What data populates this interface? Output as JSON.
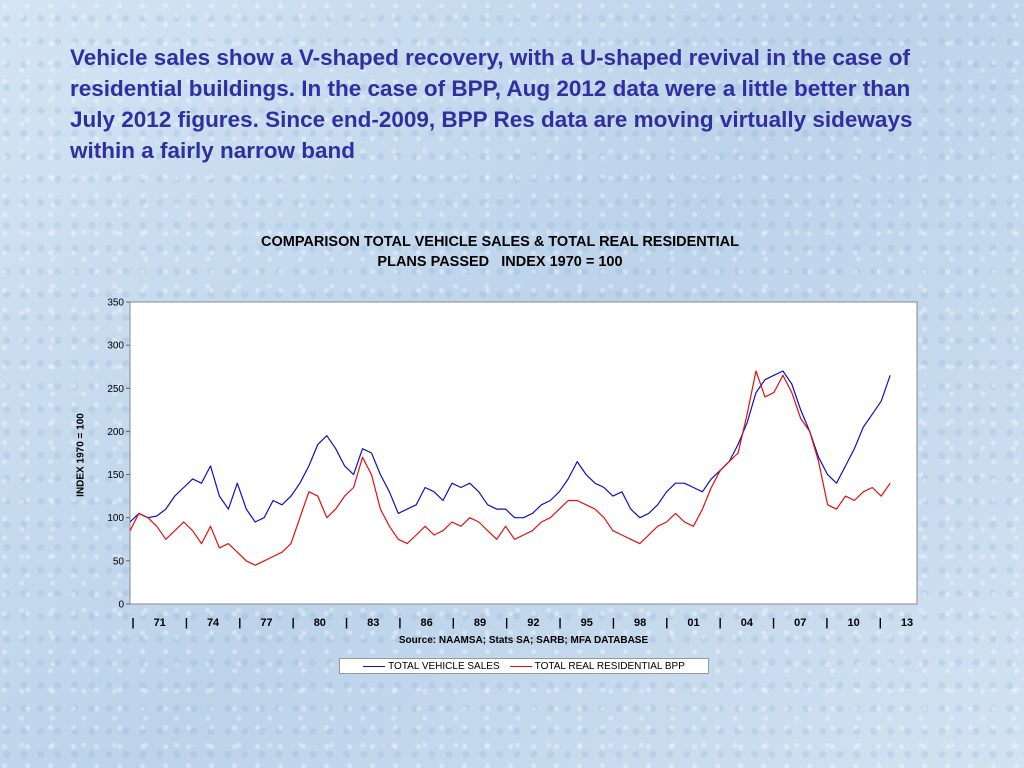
{
  "headline": "Vehicle sales show a V-shaped recovery, with a U-shaped revival in the case of residential buildings.  In the case of BPP, Aug 2012 data were a little better than July 2012 figures.  Since end-2009, BPP Res data are moving virtually sideways within a fairly narrow band",
  "chart_data": {
    "type": "line",
    "title_line1": "COMPARISON TOTAL VEHICLE SALES & TOTAL REAL RESIDENTIAL",
    "title_line2": "PLANS PASSED   INDEX 1970 = 100",
    "ylabel": "INDEX 1970 = 100",
    "xlabel": "Source: NAAMSA; Stats SA; SARB; MFA DATABASE",
    "ylim": [
      0,
      350
    ],
    "xlim": [
      1970,
      2014
    ],
    "yticks": [
      0,
      50,
      100,
      150,
      200,
      250,
      300,
      350
    ],
    "xtick_labels": [
      "|",
      "71",
      "|",
      "74",
      "|",
      "77",
      "|",
      "80",
      "|",
      "83",
      "|",
      "86",
      "|",
      "89",
      "|",
      "92",
      "|",
      "95",
      "|",
      "98",
      "|",
      "01",
      "|",
      "04",
      "|",
      "07",
      "|",
      "10",
      "|",
      "13"
    ],
    "grid": false,
    "legend_position": "bottom",
    "series": [
      {
        "name": "TOTAL VEHICLE SALES",
        "color": "#1010c0",
        "x": [
          1970,
          1970.5,
          1971,
          1971.5,
          1972,
          1972.5,
          1973,
          1973.5,
          1974,
          1974.5,
          1975,
          1975.5,
          1976,
          1976.5,
          1977,
          1977.5,
          1978,
          1978.5,
          1979,
          1979.5,
          1980,
          1980.5,
          1981,
          1981.5,
          1982,
          1982.5,
          1983,
          1983.5,
          1984,
          1984.5,
          1985,
          1985.5,
          1986,
          1986.5,
          1987,
          1987.5,
          1988,
          1988.5,
          1989,
          1989.5,
          1990,
          1990.5,
          1991,
          1991.5,
          1992,
          1992.5,
          1993,
          1993.5,
          1994,
          1994.5,
          1995,
          1995.5,
          1996,
          1996.5,
          1997,
          1997.5,
          1998,
          1998.5,
          1999,
          1999.5,
          2000,
          2000.5,
          2001,
          2001.5,
          2002,
          2002.5,
          2003,
          2003.5,
          2004,
          2004.5,
          2005,
          2005.5,
          2006,
          2006.5,
          2007,
          2007.5,
          2008,
          2008.5,
          2009,
          2009.5,
          2010,
          2010.5,
          2011,
          2011.5,
          2012,
          2012.5
        ],
        "values": [
          95,
          105,
          100,
          102,
          110,
          125,
          135,
          145,
          140,
          160,
          125,
          110,
          140,
          110,
          95,
          100,
          120,
          115,
          125,
          140,
          160,
          185,
          195,
          180,
          160,
          150,
          180,
          175,
          150,
          130,
          105,
          110,
          115,
          135,
          130,
          120,
          140,
          135,
          140,
          130,
          115,
          110,
          110,
          100,
          100,
          105,
          115,
          120,
          130,
          145,
          165,
          150,
          140,
          135,
          125,
          130,
          110,
          100,
          105,
          115,
          130,
          140,
          140,
          135,
          130,
          145,
          155,
          165,
          185,
          210,
          245,
          260,
          265,
          270,
          255,
          225,
          200,
          170,
          150,
          140,
          160,
          180,
          205,
          220,
          235,
          265
        ]
      },
      {
        "name": "TOTAL REAL RESIDENTIAL BPP",
        "color": "#e01010",
        "x": [
          1970,
          1970.5,
          1971,
          1971.5,
          1972,
          1972.5,
          1973,
          1973.5,
          1974,
          1974.5,
          1975,
          1975.5,
          1976,
          1976.5,
          1977,
          1977.5,
          1978,
          1978.5,
          1979,
          1979.5,
          1980,
          1980.5,
          1981,
          1981.5,
          1982,
          1982.5,
          1983,
          1983.5,
          1984,
          1984.5,
          1985,
          1985.5,
          1986,
          1986.5,
          1987,
          1987.5,
          1988,
          1988.5,
          1989,
          1989.5,
          1990,
          1990.5,
          1991,
          1991.5,
          1992,
          1992.5,
          1993,
          1993.5,
          1994,
          1994.5,
          1995,
          1995.5,
          1996,
          1996.5,
          1997,
          1997.5,
          1998,
          1998.5,
          1999,
          1999.5,
          2000,
          2000.5,
          2001,
          2001.5,
          2002,
          2002.5,
          2003,
          2003.5,
          2004,
          2004.5,
          2005,
          2005.5,
          2006,
          2006.5,
          2007,
          2007.5,
          2008,
          2008.5,
          2009,
          2009.5,
          2010,
          2010.5,
          2011,
          2011.5,
          2012,
          2012.5
        ],
        "values": [
          85,
          105,
          100,
          90,
          75,
          85,
          95,
          85,
          70,
          90,
          65,
          70,
          60,
          50,
          45,
          50,
          55,
          60,
          70,
          100,
          130,
          125,
          100,
          110,
          125,
          135,
          170,
          150,
          110,
          90,
          75,
          70,
          80,
          90,
          80,
          85,
          95,
          90,
          100,
          95,
          85,
          75,
          90,
          75,
          80,
          85,
          95,
          100,
          110,
          120,
          120,
          115,
          110,
          100,
          85,
          80,
          75,
          70,
          80,
          90,
          95,
          105,
          95,
          90,
          110,
          135,
          155,
          165,
          175,
          220,
          270,
          240,
          245,
          265,
          245,
          215,
          200,
          165,
          115,
          110,
          125,
          120,
          130,
          135,
          125,
          140
        ]
      }
    ]
  }
}
